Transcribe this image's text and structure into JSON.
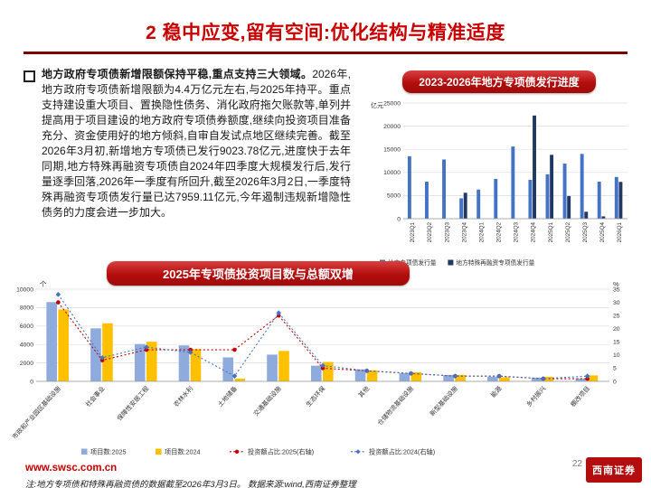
{
  "title": "2 稳中应变,留有空间:优化结构与精准适度",
  "intro": {
    "lead": "地方政府专项债新增限额保持平稳,重点支持三大领域。",
    "body": "2026年,地方政府专项债新增限额为4.4万亿元左右,与2025年持平。重点支持建设重大项目、置换隐性债务、消化政府拖欠账款等,单列并提高用于项目建设的地方政府专项债券额度,继续向投资项目准备充分、资金使用好的地方倾斜,自审自发试点地区继续完善。截至2026年3月初,新增地方专项债已发行9023.78亿元,进度快于去年同期,地方特殊再融资专项债自2024年四季度大规模发行后,发行量逐季回落,2026年一季度有所回升,截至2026年3月2日,一季度特殊再融资专项债发行量已达7959.11亿元,今年遏制违规新增隐性债务的力度会进一步加大。"
  },
  "footer": {
    "site": "www.swsc.com.cn",
    "note": "注:地方专项债和特殊再融资债的数据截至2026年3月3日。 数据来源:wind,西南证券整理",
    "page": "22",
    "logo": "西南证券"
  },
  "chart_data": [
    {
      "type": "bar",
      "title": "2023-2026年地方专项债发行进度",
      "unit": "亿元",
      "categories": [
        "2023Q1",
        "2023Q2",
        "2023Q3",
        "2023Q4",
        "2024Q1",
        "2024Q2",
        "2024Q3",
        "2024Q4",
        "2025Q1",
        "2025Q2",
        "2025Q3",
        "2025Q4",
        "2026Q1"
      ],
      "series": [
        {
          "name": "地方专项债发行量",
          "color": "#4472c4",
          "values": [
            13500,
            8000,
            12800,
            4400,
            6300,
            8600,
            15600,
            8400,
            9600,
            11900,
            14000,
            8000,
            9024
          ]
        },
        {
          "name": "地方特殊再融资专项债发行量",
          "color": "#203864",
          "values": [
            0,
            0,
            0,
            5600,
            0,
            0,
            0,
            22300,
            13800,
            4900,
            1500,
            500,
            7959
          ]
        }
      ],
      "ylim": [
        0,
        25000
      ],
      "ytick": 5000,
      "grid": true,
      "legend_position": "bottom"
    },
    {
      "type": "bar+line",
      "title": "2025年专项债投资项目数与总额双增",
      "unit_left": "个",
      "unit_right": "%",
      "categories": [
        "市政和产业园区基础设施",
        "社会事业",
        "保障性安居工程",
        "农林水利",
        "土地储备",
        "交通基础设施",
        "生态环保",
        "其他",
        "仓储物流基础设施",
        "新型基础设施",
        "能源",
        "乡村振兴",
        "棚改项目"
      ],
      "bar_series": [
        {
          "name": "项目数:2025",
          "color": "#8faadc",
          "values": [
            8600,
            5750,
            4050,
            3900,
            2600,
            2900,
            1700,
            1300,
            900,
            700,
            500,
            400,
            300
          ]
        },
        {
          "name": "项目数:2024",
          "color": "#ffc000",
          "values": [
            7800,
            6300,
            4300,
            3500,
            300,
            3300,
            2100,
            1200,
            1000,
            700,
            450,
            500,
            650
          ]
        }
      ],
      "line_series": [
        {
          "name": "投资额占比:2025(右轴)",
          "color": "#c00000",
          "marker": "circle",
          "values": [
            30,
            8,
            12,
            12,
            12,
            25,
            5,
            4,
            3,
            2,
            2,
            1,
            1
          ]
        },
        {
          "name": "投资额占比:2024(右轴)",
          "color": "#4472c4",
          "marker": "diamond",
          "values": [
            33,
            9,
            13,
            11,
            2,
            26,
            6,
            4,
            3,
            2,
            2,
            1,
            2
          ]
        }
      ],
      "ylim_left": [
        0,
        10000
      ],
      "ytick_left": 2000,
      "ylim_right": [
        0,
        35
      ],
      "ytick_right": 5,
      "grid": true,
      "legend_position": "bottom"
    }
  ]
}
